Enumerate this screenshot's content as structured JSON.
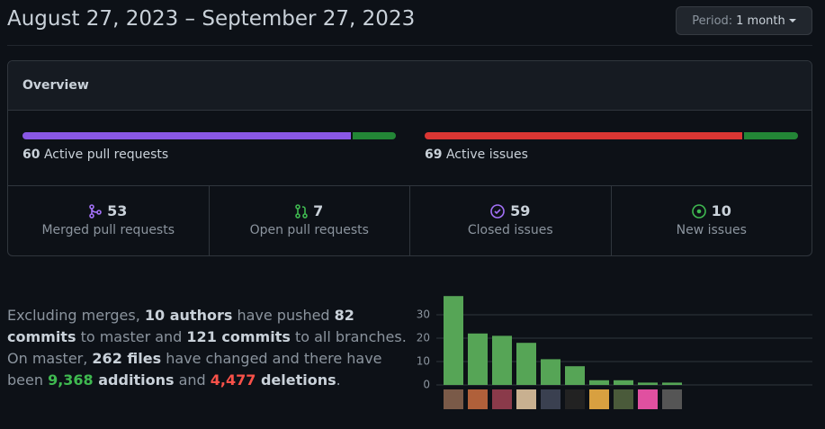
{
  "header": {
    "title": "August 27, 2023 – September 27, 2023",
    "period_label": "Period:",
    "period_value": "1 month"
  },
  "overview": {
    "title": "Overview",
    "pull_requests": {
      "count": 60,
      "label": "Active pull requests"
    },
    "issues": {
      "count": 69,
      "label": "Active issues"
    }
  },
  "stats": [
    {
      "value": 53,
      "label": "Merged pull requests"
    },
    {
      "value": 7,
      "label": "Open pull requests"
    },
    {
      "value": 59,
      "label": "Closed issues"
    },
    {
      "value": 10,
      "label": "New issues"
    }
  ],
  "summary": [
    {
      "text": "Excluding merges, "
    },
    {
      "text": "10 authors",
      "style": "bold"
    },
    {
      "text": " have pushed "
    },
    {
      "text": "82 commits",
      "style": "bold"
    },
    {
      "text": " to master and "
    },
    {
      "text": "121 commits",
      "style": "bold"
    },
    {
      "text": " to all branches. On master, "
    },
    {
      "text": "262 files",
      "style": "bold"
    },
    {
      "text": " have changed and there have been "
    },
    {
      "text": "9,368",
      "style": "green"
    },
    {
      "text": " additions",
      "style": "bold"
    },
    {
      "text": " and "
    },
    {
      "text": "4,477",
      "style": "red"
    },
    {
      "text": " deletions",
      "style": "bold"
    },
    {
      "text": "."
    }
  ],
  "commit_chart": {
    "type": "bar",
    "values": [
      38,
      22,
      21,
      18,
      11,
      8,
      2,
      2,
      1,
      1
    ],
    "color": "#56a556",
    "ylim": [
      0,
      40
    ],
    "yticks": [
      0,
      10,
      20,
      30
    ],
    "grid": true
  }
}
